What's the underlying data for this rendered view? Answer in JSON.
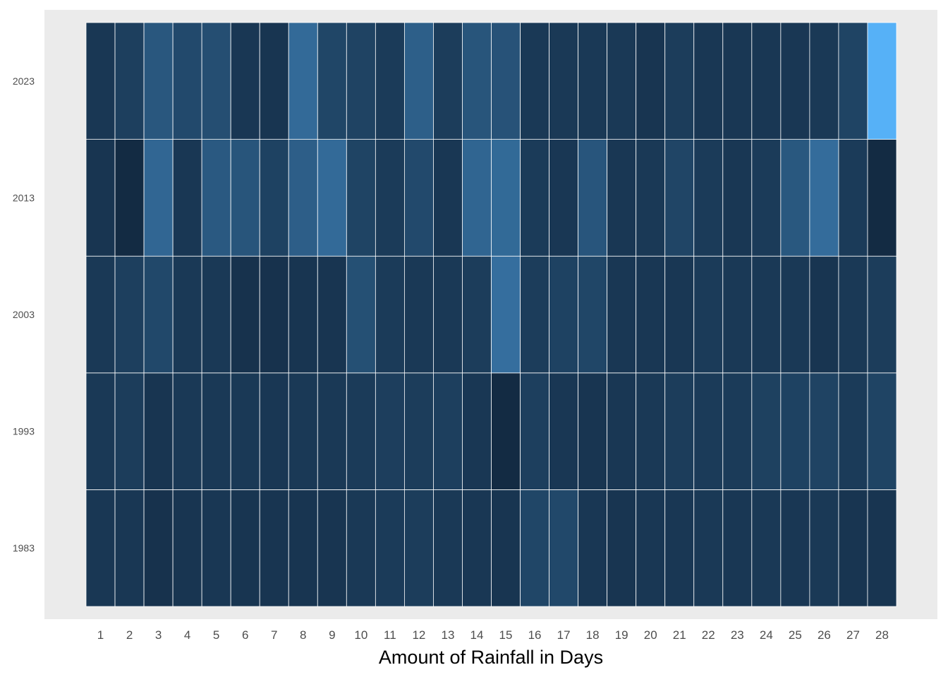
{
  "chart_data": {
    "type": "heatmap",
    "title": "",
    "xlabel": "Amount of Rainfall in Days",
    "ylabel": "",
    "x": [
      1,
      2,
      3,
      4,
      5,
      6,
      7,
      8,
      9,
      10,
      11,
      12,
      13,
      14,
      15,
      16,
      17,
      18,
      19,
      20,
      21,
      22,
      23,
      24,
      25,
      26,
      27,
      28
    ],
    "y": [
      "1983",
      "1993",
      "2003",
      "2013",
      "2023"
    ],
    "values": [
      [
        0.05,
        0.05,
        0.03,
        0.04,
        0.05,
        0.04,
        0.04,
        0.04,
        0.04,
        0.06,
        0.07,
        0.08,
        0.06,
        0.05,
        0.04,
        0.16,
        0.18,
        0.05,
        0.04,
        0.05,
        0.05,
        0.06,
        0.05,
        0.06,
        0.05,
        0.06,
        0.04,
        0.04
      ],
      [
        0.06,
        0.08,
        0.04,
        0.06,
        0.06,
        0.06,
        0.05,
        0.06,
        0.06,
        0.07,
        0.09,
        0.08,
        0.1,
        0.05,
        0.02,
        0.1,
        0.05,
        0.04,
        0.05,
        0.06,
        0.08,
        0.07,
        0.07,
        0.11,
        0.12,
        0.13,
        0.07,
        0.14
      ],
      [
        0.06,
        0.1,
        0.18,
        0.06,
        0.06,
        0.03,
        0.03,
        0.04,
        0.04,
        0.28,
        0.07,
        0.06,
        0.06,
        0.08,
        0.9,
        0.08,
        0.12,
        0.16,
        0.05,
        0.05,
        0.05,
        0.07,
        0.06,
        0.06,
        0.06,
        0.04,
        0.06,
        0.08
      ],
      [
        0.04,
        0.02,
        0.7,
        0.05,
        0.43,
        0.36,
        0.12,
        0.53,
        0.8,
        0.14,
        0.07,
        0.2,
        0.05,
        0.68,
        0.78,
        0.07,
        0.05,
        0.37,
        0.05,
        0.06,
        0.15,
        0.07,
        0.05,
        0.07,
        0.41,
        0.85,
        0.07,
        0.02
      ],
      [
        0.05,
        0.1,
        0.4,
        0.2,
        0.26,
        0.05,
        0.04,
        0.8,
        0.16,
        0.13,
        0.07,
        0.55,
        0.08,
        0.36,
        0.32,
        0.06,
        0.06,
        0.06,
        0.06,
        0.04,
        0.08,
        0.05,
        0.05,
        0.05,
        0.05,
        0.06,
        0.14,
        3.5
      ]
    ],
    "color_low": "#132B43",
    "color_high": "#56B1F7",
    "panel_background": "#EBEBEB",
    "cell_border": "#FFFFFF",
    "legend": "none",
    "grid": false
  }
}
